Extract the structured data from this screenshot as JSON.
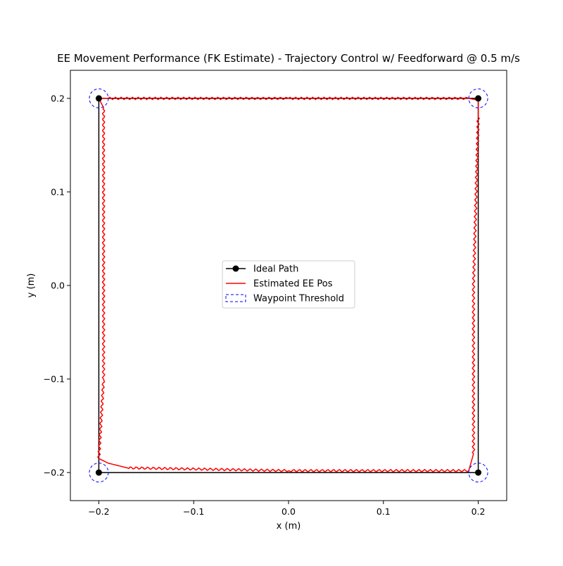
{
  "chart_data": {
    "type": "line",
    "title": "EE Movement Performance (FK Estimate) - Trajectory Control w/ Feedforward @ 0.5 m/s",
    "xlabel": "x (m)",
    "ylabel": "y (m)",
    "xlim": [
      -0.23,
      0.23
    ],
    "ylim": [
      -0.23,
      0.23
    ],
    "xticks": [
      -0.2,
      -0.1,
      0.0,
      0.1,
      0.2
    ],
    "yticks": [
      -0.2,
      -0.1,
      0.0,
      0.1,
      0.2
    ],
    "xtick_labels": [
      "−0.2",
      "−0.1",
      "0.0",
      "0.1",
      "0.2"
    ],
    "ytick_labels": [
      "−0.2",
      "−0.1",
      "0.0",
      "0.1",
      "0.2"
    ],
    "grid": false,
    "legend_position": "center",
    "series": [
      {
        "name": "Ideal Path",
        "style": "line-with-markers",
        "color": "#000000",
        "x": [
          -0.2,
          0.2,
          0.2,
          -0.2,
          -0.2
        ],
        "y": [
          0.2,
          0.2,
          -0.2,
          -0.2,
          0.2
        ]
      },
      {
        "name": "Estimated EE Pos",
        "style": "line",
        "color": "#ff0000",
        "x": [
          -0.2,
          -0.19,
          0.0,
          0.19,
          0.2,
          0.2,
          0.195,
          0.195,
          0.19,
          0.0,
          -0.17,
          -0.19,
          -0.2,
          -0.195,
          -0.195,
          -0.2
        ],
        "y": [
          0.2,
          0.2,
          0.2,
          0.2,
          0.198,
          0.18,
          0.0,
          -0.18,
          -0.198,
          -0.198,
          -0.195,
          -0.19,
          -0.185,
          -0.1,
          0.19,
          0.2
        ]
      },
      {
        "name": "Waypoint Threshold",
        "style": "dashed-circle",
        "color": "#0000ff",
        "radius": 0.01,
        "x": [
          -0.2,
          0.2,
          0.2,
          -0.2
        ],
        "y": [
          0.2,
          0.2,
          -0.2,
          -0.2
        ]
      }
    ]
  }
}
